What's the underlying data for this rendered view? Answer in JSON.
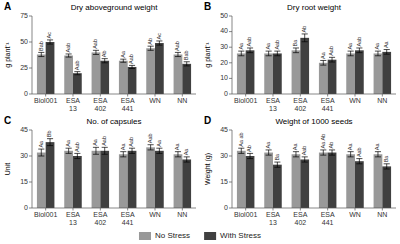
{
  "chart_data": [
    {
      "type": "bar",
      "title": "Dry aboveground weight",
      "panel_label": "A",
      "y_label": "g plant⁻¹",
      "categories": [
        "Biol001",
        "ESA 13",
        "ESA 402",
        "ESA 441",
        "WN",
        "NN"
      ],
      "ylim": [
        0,
        75
      ],
      "yticks": [
        0,
        25,
        50,
        75
      ],
      "grid": false,
      "legend": "bottom",
      "series": [
        {
          "name": "No Stress",
          "color": "#999999",
          "values": [
            38,
            37,
            40,
            32,
            44,
            38
          ],
          "errors": [
            2.0,
            1.5,
            2.0,
            1.5,
            2.0,
            2.0
          ],
          "annotations": [
            "Bab",
            "Aab",
            "Aab",
            "Aa",
            "Ab",
            "Aab"
          ]
        },
        {
          "name": "With Stress",
          "color": "#404040",
          "values": [
            50,
            20,
            32,
            26,
            49,
            29
          ],
          "errors": [
            2.0,
            1.5,
            2.0,
            1.5,
            2.0,
            2.0
          ],
          "annotations": [
            "Ac",
            "Aab",
            "Ab",
            "Aab",
            "Ac",
            "Bab"
          ]
        }
      ]
    },
    {
      "type": "bar",
      "title": "Dry root weight",
      "panel_label": "B",
      "y_label": "g plant⁻¹",
      "categories": [
        "Biol001",
        "ESA 13",
        "ESA 402",
        "ESA 441",
        "WN",
        "NN"
      ],
      "ylim": [
        0,
        50
      ],
      "yticks": [
        0,
        10,
        20,
        30,
        40,
        50
      ],
      "grid": false,
      "series": [
        {
          "name": "No Stress",
          "color": "#999999",
          "values": [
            26,
            26,
            28,
            20,
            26,
            26
          ],
          "errors": [
            1.5,
            1.5,
            1.5,
            1.5,
            1.5,
            1.5
          ],
          "annotations": [
            "Aa",
            "Aa",
            "Ba",
            "Aa",
            "Aa",
            "Aa"
          ]
        },
        {
          "name": "With Stress",
          "color": "#404040",
          "values": [
            28,
            26,
            36,
            22,
            28,
            27
          ],
          "errors": [
            1.5,
            1.5,
            2.5,
            1.5,
            1.5,
            1.5
          ],
          "annotations": [
            "Aab",
            "Aab",
            "Ab",
            "Aab",
            "Aab",
            "Aa"
          ]
        }
      ]
    },
    {
      "type": "bar",
      "title": "No. of capsules",
      "panel_label": "C",
      "y_label": "Unit",
      "categories": [
        "Biol001",
        "ESA 13",
        "ESA 402",
        "ESA 441",
        "WN",
        "NN"
      ],
      "ylim": [
        0,
        45
      ],
      "yticks": [
        0,
        15,
        30,
        45
      ],
      "grid": false,
      "series": [
        {
          "name": "No Stress",
          "color": "#999999",
          "values": [
            32,
            33,
            33,
            31,
            35,
            31
          ],
          "errors": [
            2.0,
            1.5,
            2.0,
            1.5,
            1.5,
            1.5
          ],
          "annotations": [
            "Aa",
            "Aa",
            "Aa",
            "Aa",
            "Aab",
            "Aa"
          ]
        },
        {
          "name": "With Stress",
          "color": "#404040",
          "values": [
            38,
            30,
            33,
            33,
            33,
            28
          ],
          "errors": [
            2.0,
            1.5,
            2.0,
            1.5,
            1.5,
            1.5
          ],
          "annotations": [
            "Bb",
            "Aab",
            "Aab",
            "Aab",
            "Aa",
            "Aa"
          ]
        }
      ]
    },
    {
      "type": "bar",
      "title": "Weight of 1000 seeds",
      "panel_label": "D",
      "y_label": "Weight (g)",
      "categories": [
        "Biol001",
        "ESA 13",
        "ESA 402",
        "ESA 441",
        "WN",
        "NN"
      ],
      "ylim": [
        0,
        45
      ],
      "yticks": [
        0,
        15,
        30,
        45
      ],
      "grid": false,
      "series": [
        {
          "name": "No Stress",
          "color": "#999999",
          "values": [
            33,
            32,
            31,
            32,
            31,
            31
          ],
          "errors": [
            1.5,
            1.5,
            1.5,
            1.5,
            1.5,
            1.5
          ],
          "annotations": [
            "Aa ab",
            "Aa",
            "Aa",
            "Aa Ab",
            "Aa",
            "Aa"
          ]
        },
        {
          "name": "With Stress",
          "color": "#404040",
          "values": [
            30,
            25,
            28,
            32,
            27,
            24
          ],
          "errors": [
            1.5,
            1.5,
            1.5,
            1.5,
            1.5,
            1.5
          ],
          "annotations": [
            "Ab",
            "Ba",
            "Aab",
            "Ab",
            "Aab",
            "Ba"
          ]
        }
      ]
    }
  ]
}
